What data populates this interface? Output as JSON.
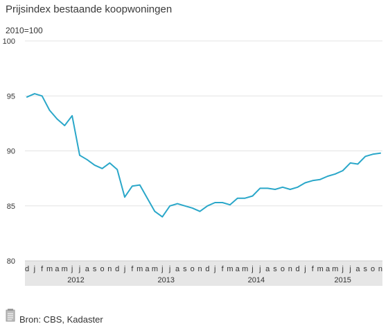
{
  "title": "Prijsindex bestaande koopwoningen",
  "unit_label": "2010=100",
  "source": "Bron: CBS, Kadaster",
  "colors": {
    "line": "#2aa7c9",
    "grid": "#e3e3e3",
    "axis_band": "#e6e6e6",
    "text": "#333333"
  },
  "icon": "document-icon",
  "chart_data": {
    "type": "line",
    "ylim": [
      80,
      100
    ],
    "yticks": [
      80,
      85,
      90,
      95,
      100
    ],
    "grid": true,
    "x": [
      "d",
      "j",
      "f",
      "m",
      "a",
      "m",
      "j",
      "j",
      "a",
      "s",
      "o",
      "n",
      "d",
      "j",
      "f",
      "m",
      "a",
      "m",
      "j",
      "j",
      "a",
      "s",
      "o",
      "n",
      "d",
      "j",
      "f",
      "m",
      "a",
      "m",
      "j",
      "j",
      "a",
      "s",
      "o",
      "n",
      "d",
      "j",
      "f",
      "m",
      "a",
      "m",
      "j",
      "j",
      "a",
      "s",
      "o",
      "n"
    ],
    "years": [
      {
        "label": "2012",
        "start": 1,
        "end": 12
      },
      {
        "label": "2013",
        "start": 13,
        "end": 24
      },
      {
        "label": "2014",
        "start": 25,
        "end": 36
      },
      {
        "label": "2015",
        "start": 37,
        "end": 47
      }
    ],
    "series": [
      {
        "values": [
          94.9,
          95.2,
          95.0,
          93.7,
          92.9,
          92.3,
          93.2,
          89.6,
          89.2,
          88.7,
          88.4,
          88.9,
          88.3,
          85.8,
          86.8,
          86.9,
          85.7,
          84.5,
          84.0,
          85.0,
          85.2,
          85.0,
          84.8,
          84.5,
          85.0,
          85.3,
          85.3,
          85.1,
          85.7,
          85.7,
          85.9,
          86.6,
          86.6,
          86.5,
          86.7,
          86.5,
          86.7,
          87.1,
          87.3,
          87.4,
          87.7,
          87.9,
          88.2,
          88.9,
          88.8,
          89.5,
          89.7,
          89.8
        ]
      }
    ]
  }
}
